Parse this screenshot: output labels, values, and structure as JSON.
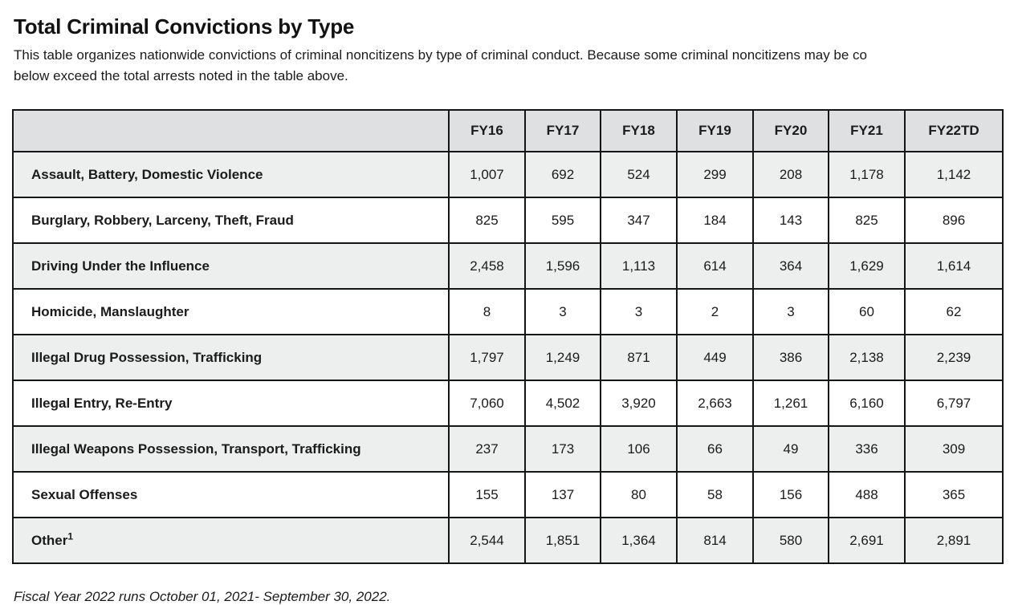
{
  "page": {
    "title": "Total Criminal Convictions by Type",
    "intro_line1": "This table organizes nationwide convictions of criminal noncitizens by type of criminal conduct. Because some criminal noncitizens may be co",
    "intro_line2": "below exceed the total arrests noted in the table above.",
    "footnote": "Fiscal Year 2022 runs October 01, 2021- September 30, 2022."
  },
  "table": {
    "corner_label": "",
    "columns": [
      "FY16",
      "FY17",
      "FY18",
      "FY19",
      "FY20",
      "FY21",
      "FY22TD"
    ],
    "rows": [
      {
        "label": "Assault, Battery, Domestic Violence",
        "sup": "",
        "values": [
          "1,007",
          "692",
          "524",
          "299",
          "208",
          "1,178",
          "1,142"
        ]
      },
      {
        "label": "Burglary, Robbery, Larceny, Theft, Fraud",
        "sup": "",
        "values": [
          "825",
          "595",
          "347",
          "184",
          "143",
          "825",
          "896"
        ]
      },
      {
        "label": "Driving Under the Influence",
        "sup": "",
        "values": [
          "2,458",
          "1,596",
          "1,113",
          "614",
          "364",
          "1,629",
          "1,614"
        ]
      },
      {
        "label": "Homicide, Manslaughter",
        "sup": "",
        "values": [
          "8",
          "3",
          "3",
          "2",
          "3",
          "60",
          "62"
        ]
      },
      {
        "label": "Illegal Drug Possession, Trafficking",
        "sup": "",
        "values": [
          "1,797",
          "1,249",
          "871",
          "449",
          "386",
          "2,138",
          "2,239"
        ]
      },
      {
        "label": "Illegal Entry, Re-Entry",
        "sup": "",
        "values": [
          "7,060",
          "4,502",
          "3,920",
          "2,663",
          "1,261",
          "6,160",
          "6,797"
        ]
      },
      {
        "label": "Illegal Weapons Possession, Transport, Trafficking",
        "sup": "",
        "values": [
          "237",
          "173",
          "106",
          "66",
          "49",
          "336",
          "309"
        ]
      },
      {
        "label": "Sexual Offenses",
        "sup": "",
        "values": [
          "155",
          "137",
          "80",
          "58",
          "156",
          "488",
          "365"
        ]
      },
      {
        "label": "Other",
        "sup": "1",
        "values": [
          "2,544",
          "1,851",
          "1,364",
          "814",
          "580",
          "2,691",
          "2,891"
        ]
      }
    ]
  },
  "colors": {
    "header_bg": "#dfe0e1",
    "stripe_bg": "#edeeee",
    "border": "#151515",
    "text": "#1b1b1b"
  },
  "chart_data": {
    "type": "table",
    "title": "Total Criminal Convictions by Type",
    "categories": [
      "FY16",
      "FY17",
      "FY18",
      "FY19",
      "FY20",
      "FY21",
      "FY22TD"
    ],
    "series": [
      {
        "name": "Assault, Battery, Domestic Violence",
        "values": [
          1007,
          692,
          524,
          299,
          208,
          1178,
          1142
        ]
      },
      {
        "name": "Burglary, Robbery, Larceny, Theft, Fraud",
        "values": [
          825,
          595,
          347,
          184,
          143,
          825,
          896
        ]
      },
      {
        "name": "Driving Under the Influence",
        "values": [
          2458,
          1596,
          1113,
          614,
          364,
          1629,
          1614
        ]
      },
      {
        "name": "Homicide, Manslaughter",
        "values": [
          8,
          3,
          3,
          2,
          3,
          60,
          62
        ]
      },
      {
        "name": "Illegal Drug Possession, Trafficking",
        "values": [
          1797,
          1249,
          871,
          449,
          386,
          2138,
          2239
        ]
      },
      {
        "name": "Illegal Entry, Re-Entry",
        "values": [
          7060,
          4502,
          3920,
          2663,
          1261,
          6160,
          6797
        ]
      },
      {
        "name": "Illegal Weapons Possession, Transport, Trafficking",
        "values": [
          237,
          173,
          106,
          66,
          49,
          336,
          309
        ]
      },
      {
        "name": "Sexual Offenses",
        "values": [
          155,
          137,
          80,
          58,
          156,
          488,
          365
        ]
      },
      {
        "name": "Other",
        "values": [
          2544,
          1851,
          1364,
          814,
          580,
          2691,
          2891
        ]
      }
    ]
  }
}
